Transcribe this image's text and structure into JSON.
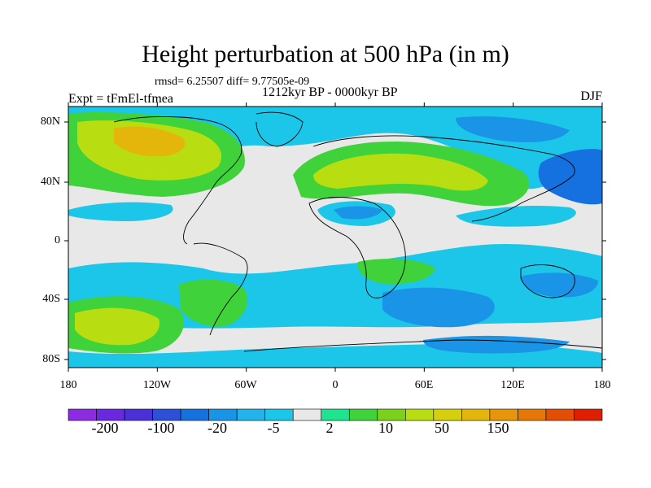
{
  "title": "Height perturbation at 500 hPa (in m)",
  "stats": "rmsd= 6.25507 diff= 9.77505e-09",
  "experiment": "Expt = tFmEl-tfmea",
  "period": "1212kyr BP - 0000kyr BP",
  "season": "DJF",
  "lat_labels": [
    "80N",
    "40N",
    "0",
    "40S",
    "80S"
  ],
  "lon_labels": [
    "180",
    "120W",
    "60W",
    "0",
    "60E",
    "120E",
    "180"
  ],
  "colorbar": {
    "labels": [
      "-200",
      "-100",
      "-20",
      "-5",
      "2",
      "10",
      "50",
      "150"
    ],
    "colors": [
      "#8b2be2",
      "#6a28e0",
      "#4a30d8",
      "#2e4fd8",
      "#1570e0",
      "#1a94e6",
      "#21b3ea",
      "#1cc6e8",
      "#e8e8e8",
      "#1de58f",
      "#40d23a",
      "#7ad21b",
      "#b8de12",
      "#d6cf0c",
      "#e4b50a",
      "#e69608",
      "#e57706",
      "#e44e04",
      "#e01f02"
    ]
  },
  "map_colors": {
    "background": "#e8e8e8",
    "light_blue": "#1cc6e8",
    "mid_blue": "#1a94e6",
    "dark_blue": "#1570e0",
    "teal": "#1de58f",
    "green": "#40d23a",
    "yellow_green": "#b8de12",
    "orange": "#e4b50a"
  }
}
